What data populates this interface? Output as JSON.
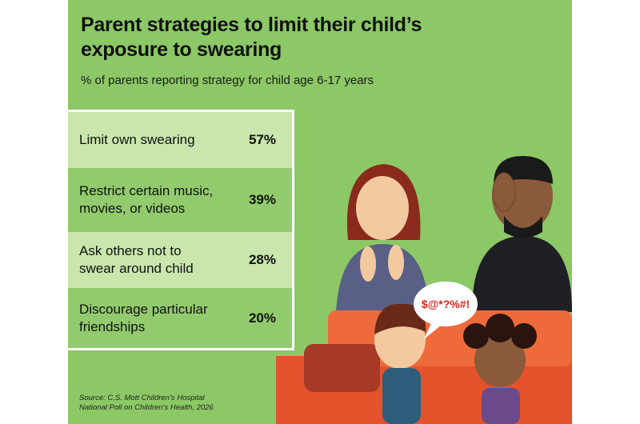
{
  "header": {
    "title_lines": [
      "Parent strategies to limit their child’s",
      "exposure to swearing"
    ],
    "subtitle": "% of parents reporting strategy for child age 6-17 years"
  },
  "table": {
    "rows": [
      {
        "label_lines": [
          "Limit own swearing"
        ],
        "value": "57%"
      },
      {
        "label_lines": [
          "Restrict certain music,",
          "movies, or videos"
        ],
        "value": "39%"
      },
      {
        "label_lines": [
          "Ask others not to",
          "swear around child"
        ],
        "value": "28%"
      },
      {
        "label_lines": [
          "Discourage particular",
          "friendships"
        ],
        "value": "20%"
      }
    ]
  },
  "illustration": {
    "speech": "$@*?%#!"
  },
  "footer": {
    "source_lines": [
      "Source: C.S. Mott Children’s Hospital",
      "National Poll on Children’s Health, 2026"
    ]
  }
}
